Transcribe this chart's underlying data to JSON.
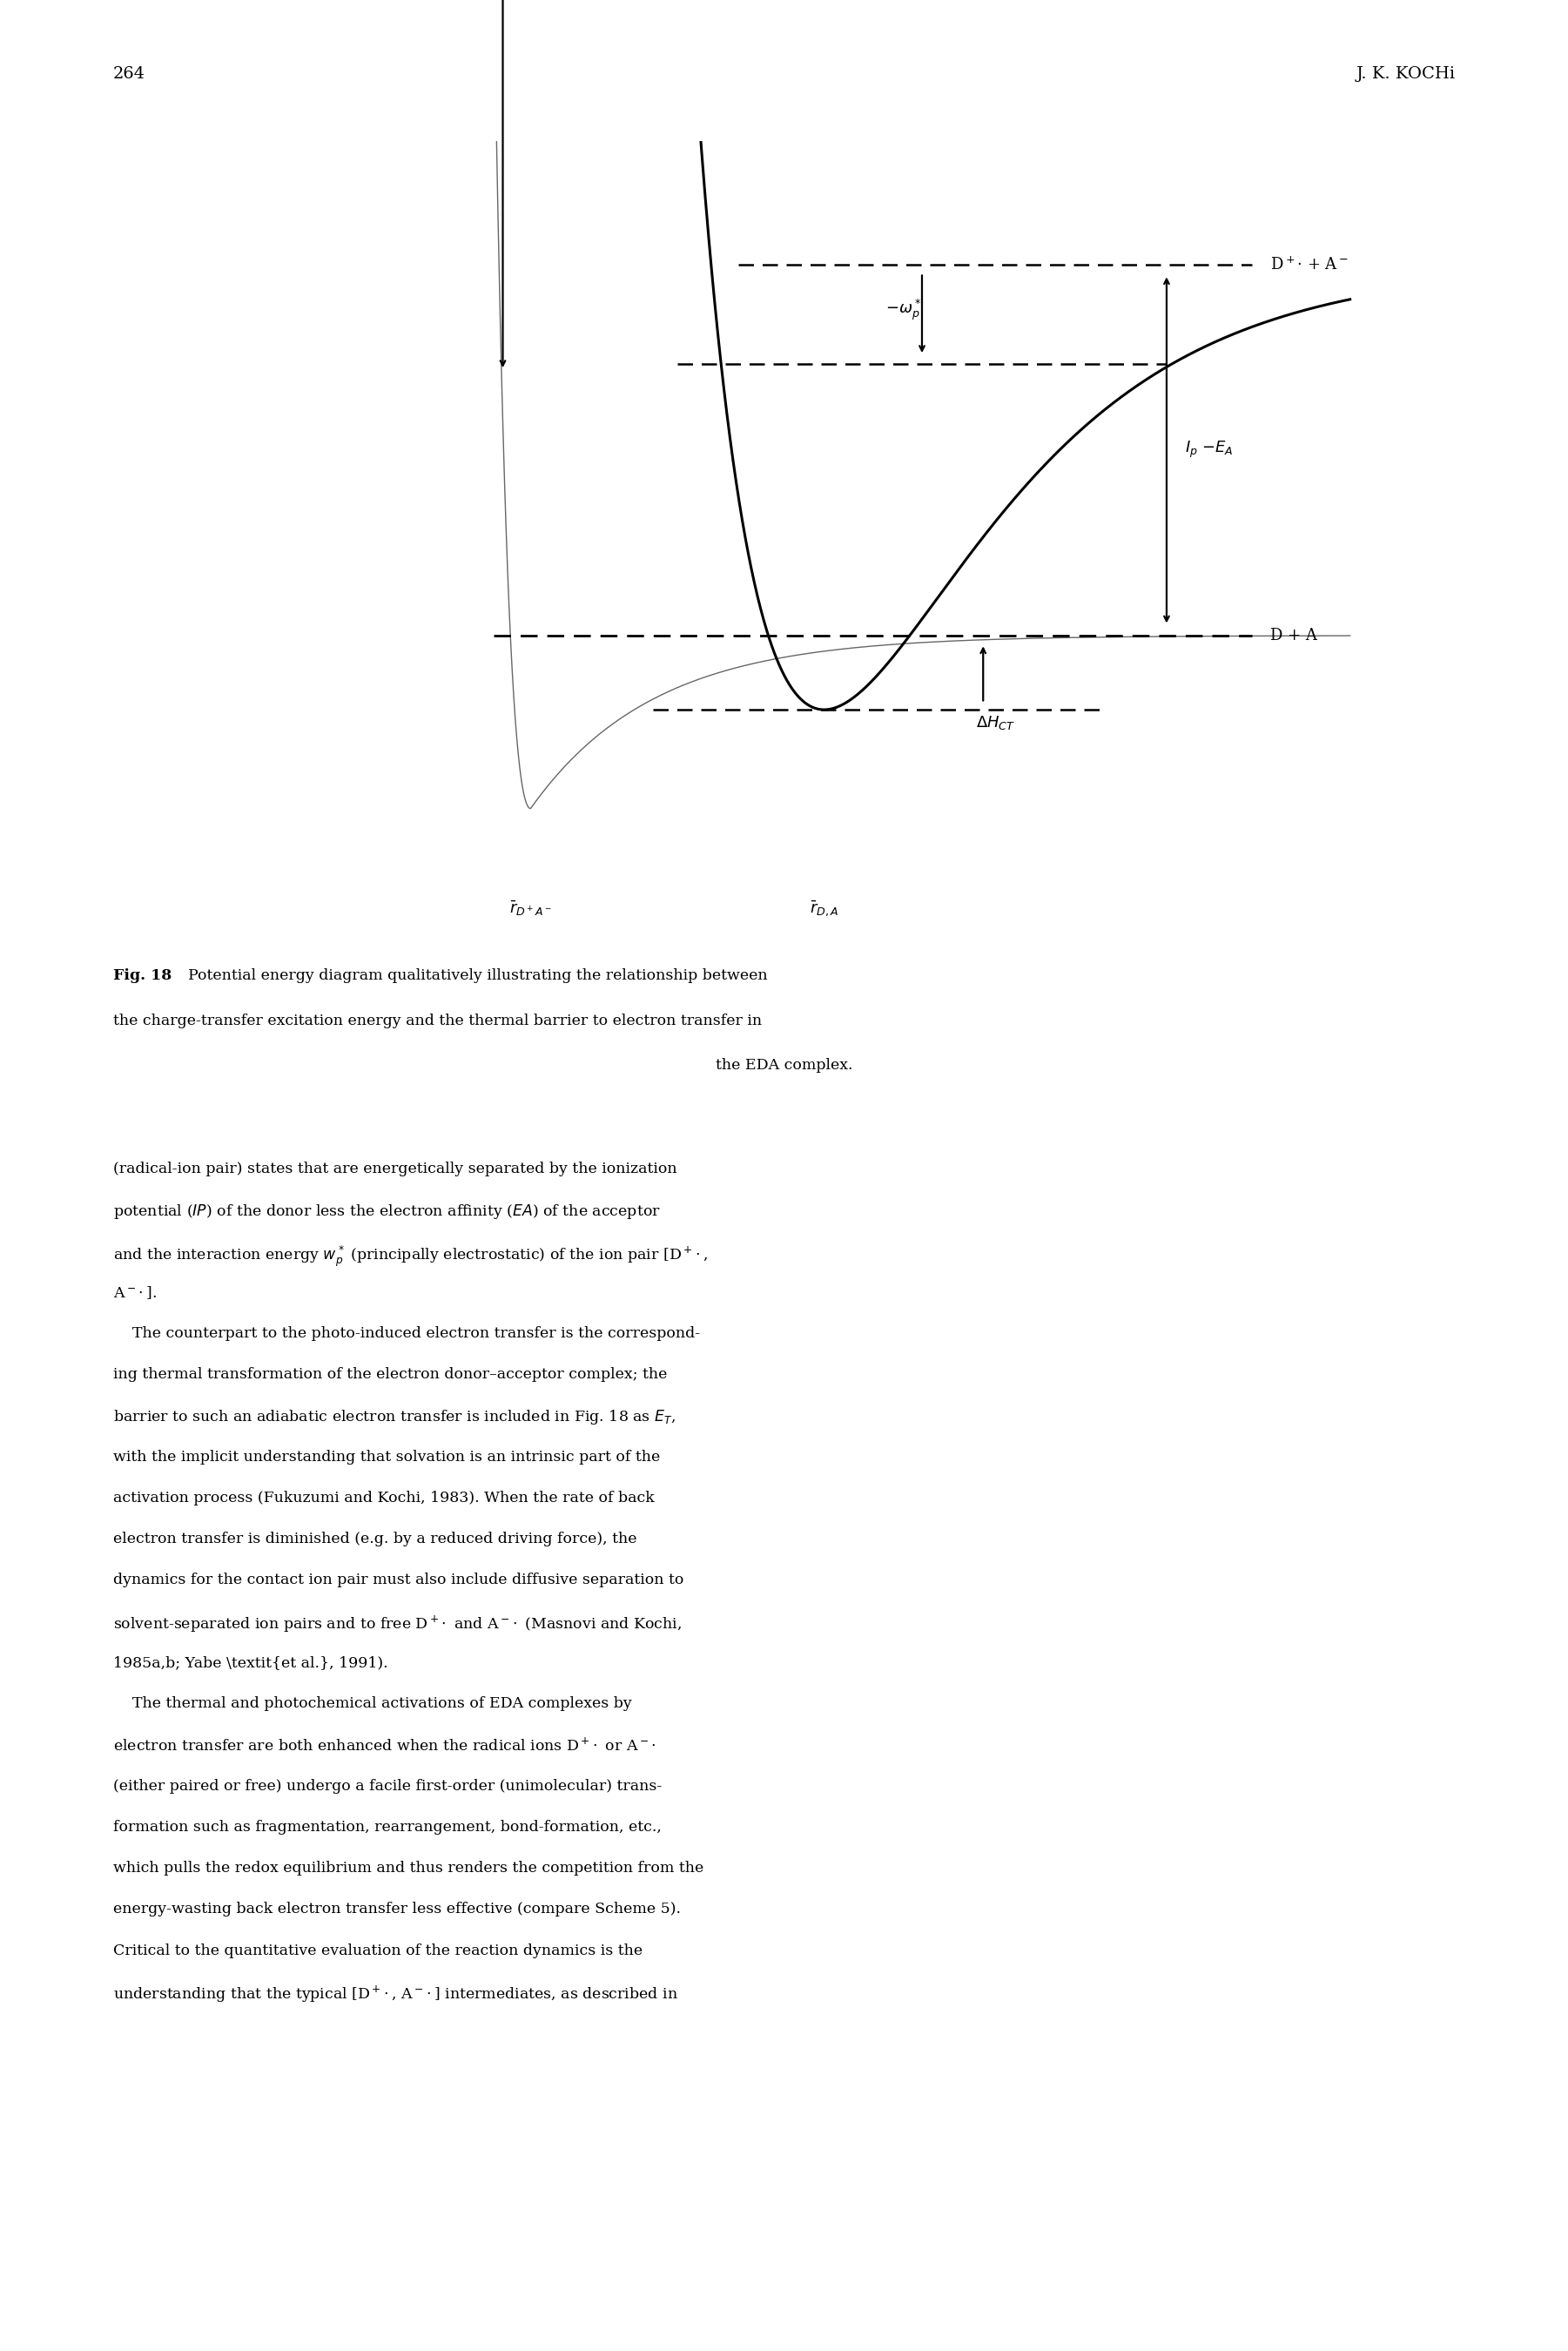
{
  "page_number": "264",
  "header_right": "J. K. KOCHi",
  "background_color": "#ffffff",
  "text_color": "#000000",
  "fig_label": "Fig. 18",
  "fig_caption_rest": "Potential energy diagram qualitatively illustrating the relationship between",
  "fig_caption_line2": "the charge-transfer excitation energy and the thermal barrier to electron transfer in",
  "fig_caption_line3": "the EDA complex.",
  "body_lines": [
    "(radical-ion pair) states that are energetically separated by the ionization",
    "potential (IP) of the donor less the electron affinity (EA) of the acceptor",
    "and the interaction energy wp* (principally electrostatic) of the ion pair [D+.,",
    "A-.].",
    "    The counterpart to the photo-induced electron transfer is the correspond-",
    "ing thermal transformation of the electron donor–acceptor complex; the",
    "barrier to such an adiabatic electron transfer is included in Fig. 18 as ET,",
    "with the implicit understanding that solvation is an intrinsic part of the",
    "activation process (Fukuzumi and Kochi, 1983). When the rate of back",
    "electron transfer is diminished (e.g. by a reduced driving force), the",
    "dynamics for the contact ion pair must also include diffusive separation to",
    "solvent-separated ion pairs and to free D+. and A-. (Masnovi and Kochi,",
    "1985a,b; Yabe et al., 1991).",
    "    The thermal and photochemical activations of EDA complexes by",
    "electron transfer are both enhanced when the radical ions D+. or A-.",
    "(either paired or free) undergo a facile first-order (unimolecular) trans-",
    "formation such as fragmentation, rearrangement, bond-formation, etc.,",
    "which pulls the redox equilibrium and thus renders the competition from the",
    "energy-wasting back electron transfer less effective (compare Scheme 5).",
    "Critical to the quantitative evaluation of the reaction dynamics is the",
    "understanding that the typical [D+., A-.] intermediates, as described in"
  ]
}
